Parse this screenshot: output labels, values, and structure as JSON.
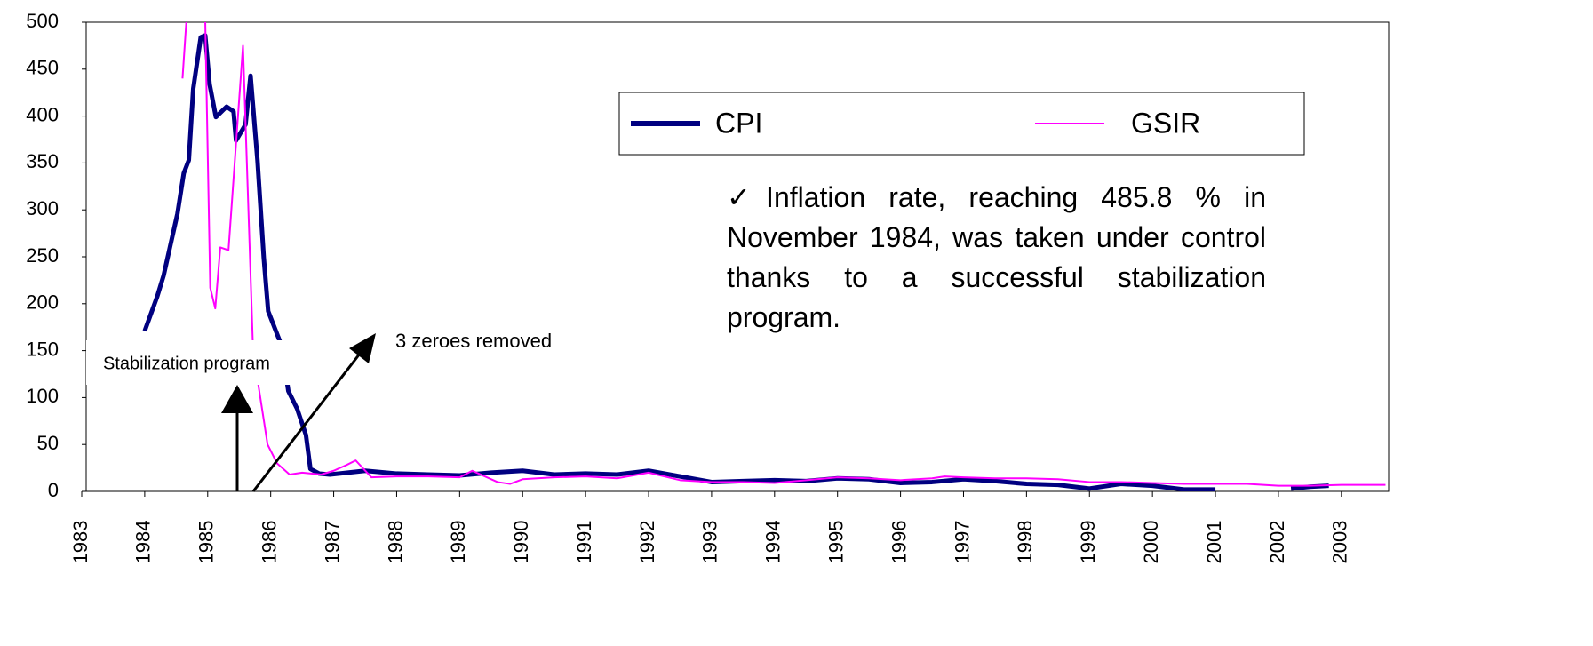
{
  "chart_data": {
    "type": "line",
    "series": [
      {
        "name": "CPI",
        "color": "#000080",
        "x": [
          1984.0,
          1984.2,
          1984.3,
          1984.42,
          1984.52,
          1984.62,
          1984.7,
          1984.77,
          1984.89,
          1984.96,
          1985.03,
          1985.13,
          1985.3,
          1985.41,
          1985.45,
          1985.6,
          1985.68,
          1985.79,
          1985.89,
          1985.96,
          1986.07,
          1986.18,
          1986.28,
          1986.42,
          1986.56,
          1986.63,
          1986.77,
          1986.94,
          1987.5,
          1988.0,
          1988.5,
          1989.0,
          1989.5,
          1990.0,
          1990.5,
          1991.0,
          1991.5,
          1992.0,
          1992.5,
          1993.0,
          1993.5,
          1994.0,
          1994.5,
          1995.0,
          1995.5,
          1996.0,
          1996.5,
          1997.0,
          1997.5,
          1998.0,
          1998.5,
          1999.0,
          1999.5,
          2000.0,
          2000.5,
          2001.0,
          2001.5,
          2002.2,
          2002.5,
          2002.8
        ],
        "values": [
          171,
          208,
          230,
          266,
          296,
          339,
          353,
          429,
          484,
          486,
          434,
          399,
          410,
          405,
          374,
          391,
          443,
          353,
          249,
          192,
          173,
          154,
          107,
          88,
          60,
          24,
          19,
          18,
          22,
          19,
          18,
          17,
          20,
          22,
          18,
          19,
          18,
          22,
          16,
          10,
          11,
          12,
          11,
          14,
          13,
          9,
          10,
          13,
          11,
          8,
          7,
          3,
          8,
          6,
          2,
          2,
          null,
          3,
          5,
          6
        ]
      },
      {
        "name": "GSIR",
        "color": "#ff00ff",
        "x": [
          1984.6,
          1984.68,
          1984.96,
          1985.04,
          1985.12,
          1985.2,
          1985.33,
          1985.56,
          1985.72,
          1985.95,
          1986.1,
          1986.3,
          1986.5,
          1986.8,
          1987.0,
          1987.2,
          1987.35,
          1987.6,
          1988.0,
          1988.5,
          1989.0,
          1989.2,
          1989.6,
          1989.8,
          1990.0,
          1990.5,
          1991.0,
          1991.5,
          1992.0,
          1992.5,
          1993.0,
          1993.5,
          1994.0,
          1994.5,
          1995.0,
          1995.5,
          1996.0,
          1996.5,
          1996.7,
          1997.0,
          1997.5,
          1998.0,
          1998.5,
          1999.0,
          1999.5,
          2000.0,
          2000.5,
          2001.0,
          2001.5,
          2002.0,
          2002.5,
          2003.0,
          2003.7
        ],
        "values": [
          440,
          520,
          505,
          217,
          195,
          260,
          257,
          475,
          150,
          50,
          30,
          18,
          20,
          18,
          22,
          28,
          33,
          15,
          16,
          16,
          15,
          22,
          10,
          8,
          13,
          15,
          16,
          14,
          20,
          12,
          10,
          10,
          9,
          12,
          15,
          14,
          12,
          14,
          16,
          15,
          14,
          14,
          13,
          10,
          10,
          9,
          8,
          8,
          8,
          6,
          6,
          7,
          7
        ]
      }
    ],
    "xlim": [
      1983,
      2003.75
    ],
    "xticks": [
      1983,
      1984,
      1985,
      1986,
      1987,
      1988,
      1989,
      1990,
      1991,
      1992,
      1993,
      1994,
      1995,
      1996,
      1997,
      1998,
      1999,
      2000,
      2001,
      2002,
      2003
    ],
    "ylim": [
      0,
      500
    ],
    "yticks": [
      0,
      50,
      100,
      150,
      200,
      250,
      300,
      350,
      400,
      450,
      500
    ],
    "annotations": [
      "Stabilization program",
      "3 zeroes removed"
    ],
    "note": "✓Inflation rate, reaching 485.8 % in November 1984, was taken under control thanks to a successful stabilization program."
  }
}
